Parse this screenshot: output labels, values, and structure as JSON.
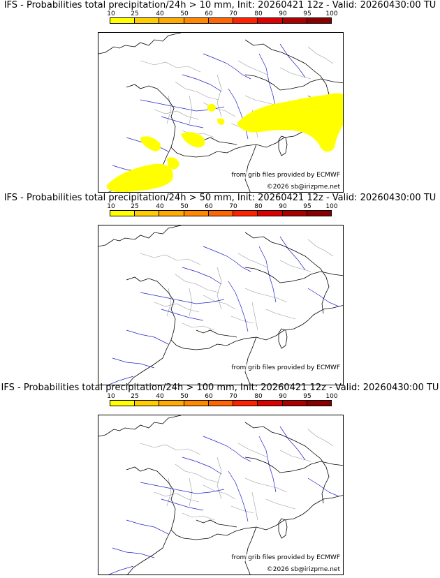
{
  "panels": [
    {
      "title": "IFS - Probabilities total precipitation/24h > 10 mm, Init: 20260421 12z - Valid: 20260430:00 TU",
      "threshold_mm": 10
    },
    {
      "title": "IFS - Probabilities total precipitation/24h > 50 mm, Init: 20260421 12z - Valid: 20260430:00 TU",
      "threshold_mm": 50
    },
    {
      "title": "IFS - Probabilities total precipitation/24h > 100 mm, Init: 20260421 12z - Valid: 20260430:00 TU",
      "threshold_mm": 100
    }
  ],
  "colorbar": {
    "ticks": [
      "10",
      "25",
      "40",
      "50",
      "60",
      "70",
      "80",
      "90",
      "95",
      "100"
    ],
    "colors": [
      "#ffff00",
      "#ffcc00",
      "#ffaa00",
      "#ff8800",
      "#ff6600",
      "#ff2200",
      "#dd0000",
      "#aa0000",
      "#880000"
    ]
  },
  "credits": {
    "source": "from grib files provided by ECMWF",
    "copyright": "©2026 sb@irizpme.net"
  },
  "styles": {
    "precip_color": "#ffff00",
    "coast_color": "#000000",
    "river_color": "#2222cc",
    "border_color": "#999999"
  }
}
